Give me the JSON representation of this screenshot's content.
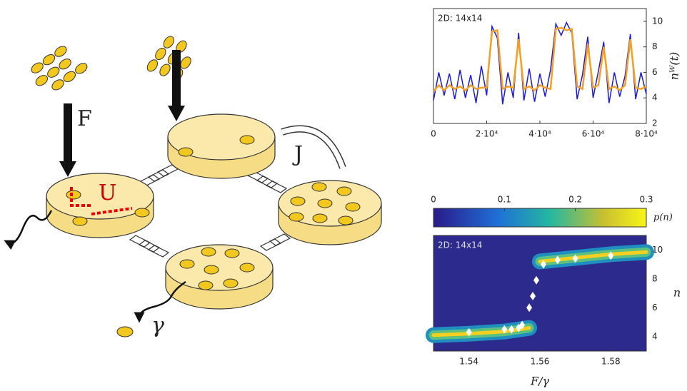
{
  "diagram": {
    "pump": "F",
    "hopping": "J",
    "interaction": "U",
    "loss": "γ"
  },
  "chart_data": [
    {
      "type": "line",
      "title": "2D: 14x14",
      "ylabel": "nᵂ(t)",
      "x": [
        0,
        2000,
        4000,
        6000,
        8000,
        10000,
        12000,
        14000,
        16000,
        18000,
        20000,
        22000,
        24000,
        26000,
        28000,
        30000,
        32000,
        34000,
        36000,
        38000,
        40000,
        42000,
        44000,
        46000,
        48000,
        50000,
        52000,
        54000,
        56000,
        58000,
        60000,
        62000,
        64000,
        66000,
        68000,
        70000,
        72000,
        74000,
        76000,
        78000,
        80000
      ],
      "series": [
        {
          "color": "#1a1adf",
          "values": [
            3.8,
            6,
            4.2,
            5.9,
            3.9,
            6.2,
            4,
            5.8,
            3.6,
            6.5,
            4.2,
            9.6,
            8.7,
            3.5,
            6,
            4,
            9.1,
            3.8,
            6.3,
            3.7,
            5.9,
            4.1,
            6.2,
            9.8,
            8.9,
            9.9,
            9.1,
            3.9,
            5.8,
            8.8,
            4,
            6.1,
            8.4,
            3.6,
            6,
            4.1,
            5.7,
            9,
            3.9,
            6,
            4.3
          ]
        },
        {
          "color": "#f5a020",
          "values": [
            4.5,
            5,
            4.6,
            5,
            4.7,
            4.9,
            4.6,
            5,
            4.7,
            4.8,
            4.8,
            9.2,
            9.3,
            4.7,
            4.9,
            4.8,
            8.6,
            4.7,
            4.9,
            4.6,
            5,
            4.8,
            4.7,
            9.4,
            9.5,
            9.3,
            9.4,
            4.9,
            4.7,
            8.2,
            4.8,
            5,
            8,
            4.7,
            4.9,
            4.6,
            5,
            8.6,
            4.8,
            4.7,
            4.9
          ]
        }
      ],
      "xlim": [
        0,
        80000
      ],
      "ylim": [
        2,
        11
      ],
      "xticks": [
        0,
        {
          "value": 20000,
          "label": "2·10⁴"
        },
        {
          "value": 40000,
          "label": "4·10⁴"
        },
        {
          "value": 60000,
          "label": "6·10⁴"
        },
        {
          "value": 80000,
          "label": "8·10⁴"
        }
      ],
      "yticks": [
        2,
        4,
        6,
        8,
        10
      ]
    },
    {
      "type": "contour",
      "title": "2D: 14x14",
      "xlabel": "F/γ",
      "ylabel": "n",
      "colorbar": {
        "label": "p(n)",
        "lim": [
          0,
          0.3
        ],
        "ticks": [
          0,
          0.1,
          0.2,
          0.3
        ]
      },
      "branches": [
        {
          "x": [
            1.53,
            1.54,
            1.55,
            1.557
          ],
          "values": [
            4.1,
            4.2,
            4.35,
            4.6
          ]
        },
        {
          "x": [
            1.56,
            1.57,
            1.58,
            1.59
          ],
          "values": [
            9.2,
            9.45,
            9.7,
            9.85
          ]
        }
      ],
      "points": {
        "x": [
          1.54,
          1.55,
          1.552,
          1.554,
          1.555,
          1.557,
          1.558,
          1.559,
          1.561,
          1.565,
          1.57,
          1.58
        ],
        "values": [
          4.3,
          4.5,
          4.5,
          4.6,
          4.8,
          6,
          6.8,
          7.9,
          9,
          9.3,
          9.4,
          9.6
        ]
      },
      "xlim": [
        1.53,
        1.59
      ],
      "ylim": [
        3,
        11
      ],
      "xticks": [
        1.54,
        1.56,
        1.58
      ],
      "yticks": [
        4,
        6,
        8,
        10
      ]
    }
  ]
}
